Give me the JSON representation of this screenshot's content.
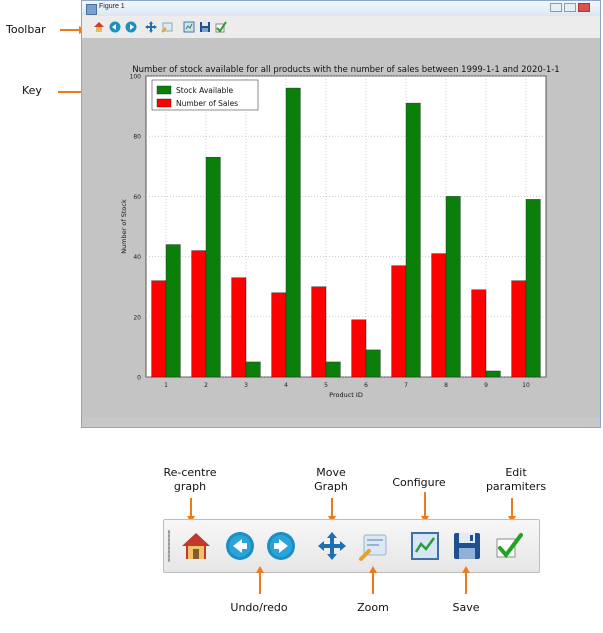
{
  "callouts": {
    "toolbar": "Toolbar",
    "key": "Key",
    "recentre": [
      "Re-centre",
      "graph"
    ],
    "move": [
      "Move",
      "Graph"
    ],
    "configure": "Configure",
    "edit": [
      "Edit",
      "paramiters"
    ],
    "undo": "Undo/redo",
    "zoom": "Zoom",
    "save": "Save"
  },
  "window": {
    "title": "Figure 1"
  },
  "colors": {
    "accent": "#f07a1a",
    "stock": "#0a800a",
    "sales": "#ff0000"
  },
  "chart_data": {
    "type": "bar",
    "title": "Number of stock available for all products with the number of sales between 1999-1-1 and 2020-1-1",
    "xlabel": "Product ID",
    "ylabel": "Number of Stock",
    "categories": [
      "1",
      "2",
      "3",
      "4",
      "5",
      "6",
      "7",
      "8",
      "9",
      "10"
    ],
    "ylim": [
      0,
      100
    ],
    "yticks": [
      0,
      20,
      40,
      60,
      80,
      100
    ],
    "grid": true,
    "legend_position": "top-left",
    "series": [
      {
        "name": "Stock Available",
        "color": "#0a800a",
        "values": [
          44,
          73,
          5,
          96,
          5,
          9,
          91,
          60,
          2,
          59
        ]
      },
      {
        "name": "Number of Sales",
        "color": "#ff0000",
        "values": [
          32,
          42,
          33,
          28,
          30,
          19,
          37,
          41,
          29,
          32
        ]
      }
    ]
  }
}
